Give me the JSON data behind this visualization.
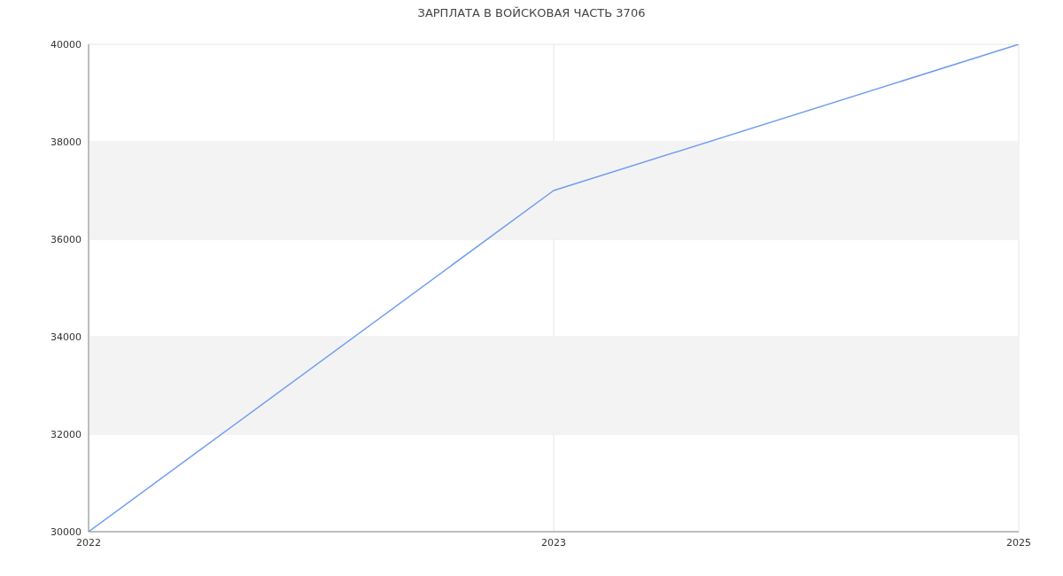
{
  "chart_data": {
    "type": "line",
    "title": "ЗАРПЛАТА В ВОЙСКОВАЯ ЧАСТЬ 3706",
    "categories": [
      "2022",
      "2023",
      "2025"
    ],
    "series": [
      {
        "color": "#6f9cf0",
        "values": [
          30000,
          37000,
          40000
        ]
      }
    ],
    "ylim": [
      30000,
      40000
    ],
    "yticks": [
      30000,
      32000,
      34000,
      36000,
      38000,
      40000
    ],
    "bands": [
      {
        "axis": "y",
        "from": 32000,
        "to": 34000,
        "color": "#f3f3f3"
      },
      {
        "axis": "y",
        "from": 36000,
        "to": 38000,
        "color": "#f3f3f3"
      }
    ],
    "grid": true,
    "legend": false,
    "marker": "none",
    "line_style": "solid"
  }
}
